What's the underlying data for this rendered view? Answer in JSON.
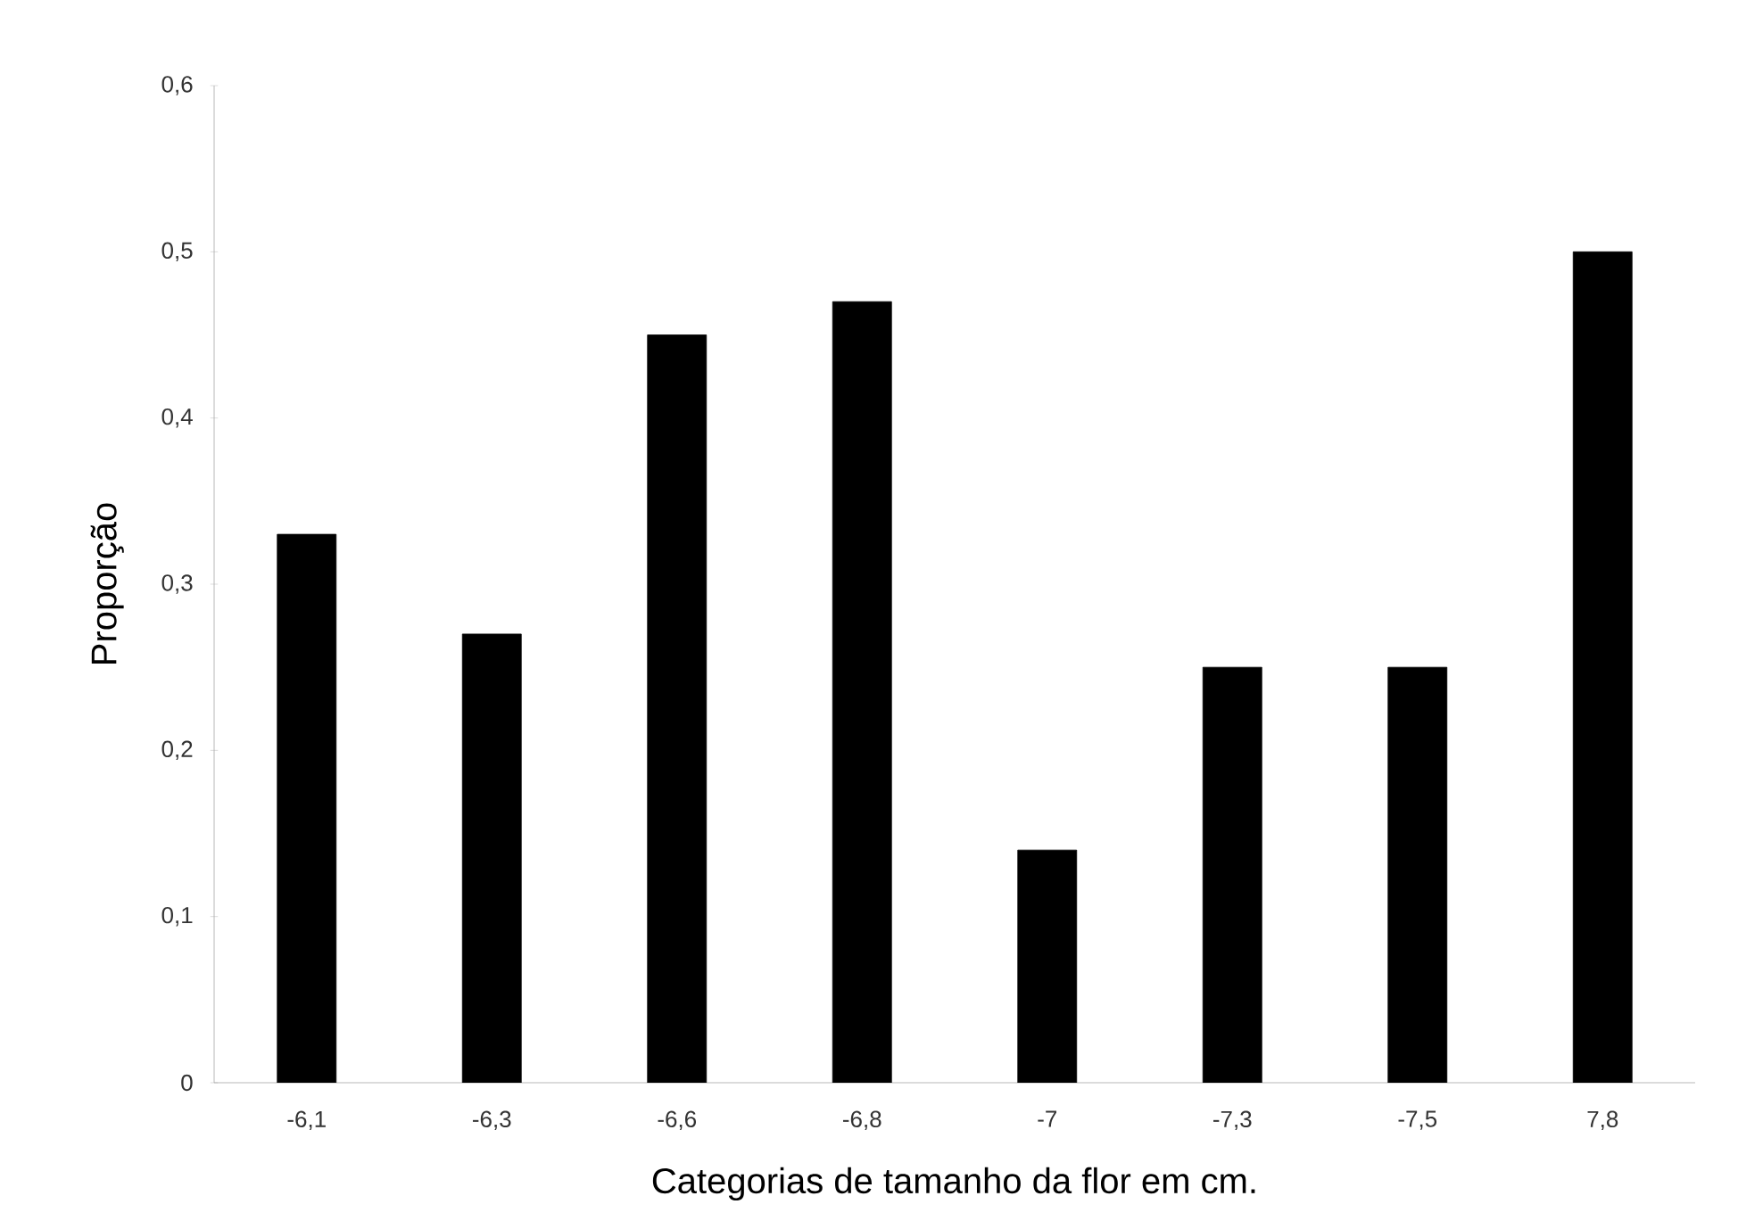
{
  "chart_data": {
    "type": "bar",
    "xlabel": "Categorias de tamanho da flor em cm.",
    "ylabel": "Proporção",
    "categories": [
      "-6,1",
      "-6,3",
      "-6,6",
      "-6,8",
      "-7",
      "-7,3",
      "-7,5",
      "7,8"
    ],
    "values": [
      0.33,
      0.27,
      0.45,
      0.47,
      0.14,
      0.25,
      0.25,
      0.5
    ],
    "color": "#000000",
    "ylim": [
      0,
      0.6
    ],
    "yticks": [
      0,
      {
        "value": 0.1,
        "label": "0,1"
      },
      {
        "value": 0.2,
        "label": "0,2"
      },
      {
        "value": 0.3,
        "label": "0,3"
      },
      {
        "value": 0.4,
        "label": "0,4"
      },
      {
        "value": 0.5,
        "label": "0,5"
      },
      {
        "value": 0.6,
        "label": "0,6"
      }
    ],
    "grid": false
  }
}
